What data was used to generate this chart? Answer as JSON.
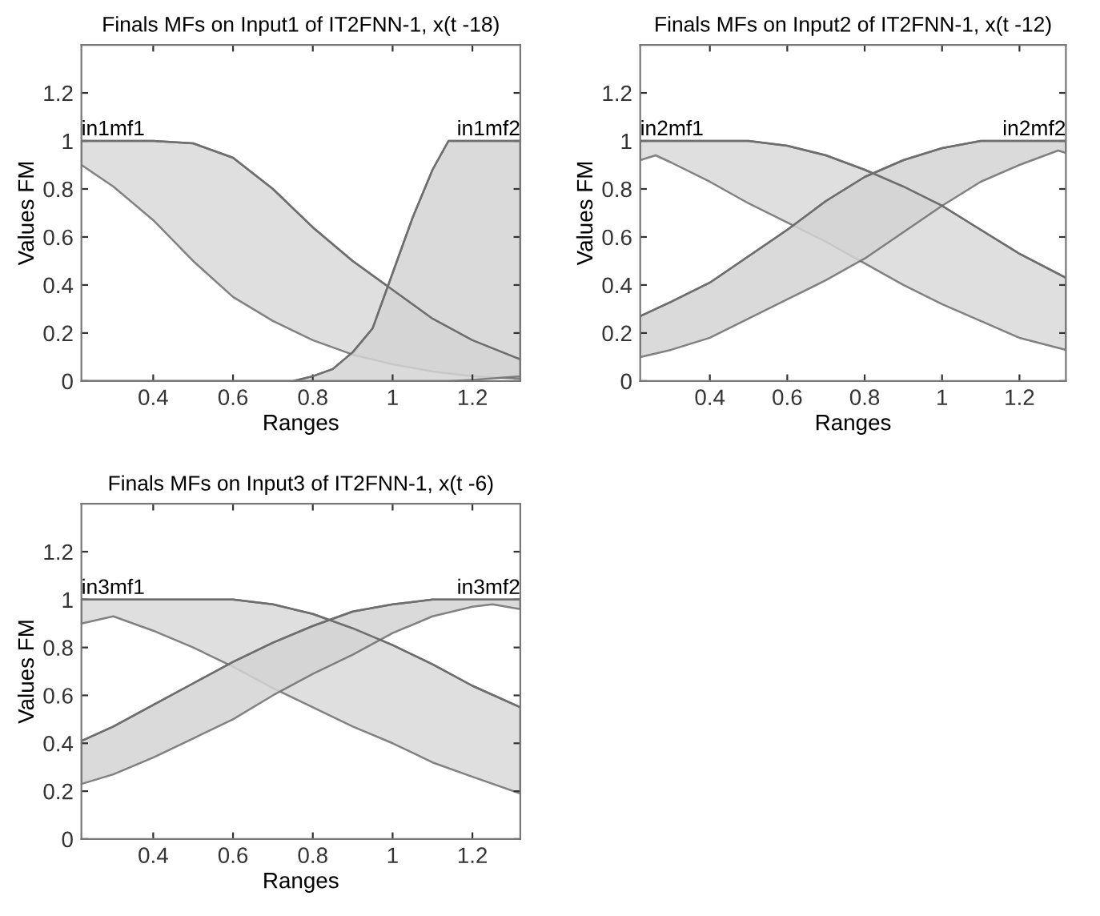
{
  "chart_data": [
    {
      "type": "line",
      "title": "Finals MFs on Input1 of IT2FNN-1, x(t -18)",
      "xlabel": "Ranges",
      "ylabel": "Values FM",
      "xlim": [
        0.22,
        1.32
      ],
      "ylim": [
        0,
        1.4
      ],
      "xticks": [
        0.4,
        0.6,
        0.8,
        1,
        1.2
      ],
      "yticks": [
        0,
        0.2,
        0.4,
        0.6,
        0.8,
        1,
        1.2
      ],
      "grid": false,
      "legend": false,
      "series": [
        {
          "name": "in1mf1",
          "color": "#6e6e6e",
          "x": [
            0.22,
            0.3,
            0.4,
            0.5,
            0.6,
            0.7,
            0.8,
            0.9,
            1.0,
            1.1,
            1.2,
            1.32
          ],
          "values": [
            1,
            1,
            1,
            0.99,
            0.93,
            0.8,
            0.64,
            0.5,
            0.38,
            0.26,
            0.17,
            0.09
          ],
          "upper": [
            1,
            1,
            1,
            0.99,
            0.93,
            0.8,
            0.64,
            0.5,
            0.38,
            0.26,
            0.17,
            0.09
          ],
          "lower": [
            0.9,
            0.81,
            0.67,
            0.5,
            0.35,
            0.25,
            0.17,
            0.11,
            0.07,
            0.04,
            0.02,
            0.01
          ]
        },
        {
          "name": "in1mf2",
          "color": "#6e6e6e",
          "x": [
            0.22,
            0.75,
            0.8,
            0.85,
            0.9,
            0.95,
            1.0,
            1.05,
            1.1,
            1.14,
            1.2,
            1.32
          ],
          "values": [
            0,
            0,
            0.02,
            0.05,
            0.12,
            0.22,
            0.45,
            0.68,
            0.88,
            1,
            1,
            1
          ],
          "upper": [
            0,
            0,
            0.02,
            0.05,
            0.12,
            0.22,
            0.45,
            0.68,
            0.88,
            1,
            1,
            1
          ],
          "lower": [
            0,
            0,
            0,
            0,
            0,
            0,
            0,
            0,
            0,
            0,
            0.005,
            0.02
          ]
        }
      ]
    },
    {
      "type": "line",
      "title": "Finals MFs on Input2 of IT2FNN-1, x(t -12)",
      "xlabel": "Ranges",
      "ylabel": "Values FM",
      "xlim": [
        0.22,
        1.32
      ],
      "ylim": [
        0,
        1.4
      ],
      "xticks": [
        0.4,
        0.6,
        0.8,
        1,
        1.2
      ],
      "yticks": [
        0,
        0.2,
        0.4,
        0.6,
        0.8,
        1,
        1.2
      ],
      "grid": false,
      "legend": false,
      "series": [
        {
          "name": "in2mf1",
          "color": "#6e6e6e",
          "x": [
            0.22,
            0.26,
            0.3,
            0.4,
            0.5,
            0.6,
            0.7,
            0.8,
            0.9,
            1.0,
            1.1,
            1.2,
            1.32
          ],
          "values": [
            1,
            1,
            1,
            1,
            1,
            0.98,
            0.94,
            0.88,
            0.81,
            0.73,
            0.63,
            0.53,
            0.43
          ],
          "upper": [
            1,
            1,
            1,
            1,
            1,
            0.98,
            0.94,
            0.88,
            0.81,
            0.73,
            0.63,
            0.53,
            0.43
          ],
          "lower": [
            0.92,
            0.94,
            0.91,
            0.83,
            0.74,
            0.66,
            0.58,
            0.49,
            0.4,
            0.32,
            0.25,
            0.18,
            0.13
          ]
        },
        {
          "name": "in2mf2",
          "color": "#6e6e6e",
          "x": [
            0.22,
            0.3,
            0.4,
            0.5,
            0.6,
            0.7,
            0.8,
            0.9,
            1.0,
            1.1,
            1.2,
            1.3,
            1.32
          ],
          "values": [
            0.27,
            0.33,
            0.41,
            0.52,
            0.63,
            0.75,
            0.85,
            0.92,
            0.97,
            1,
            1,
            1,
            1
          ],
          "upper": [
            0.27,
            0.33,
            0.41,
            0.52,
            0.63,
            0.75,
            0.85,
            0.92,
            0.97,
            1,
            1,
            1,
            1
          ],
          "lower": [
            0.1,
            0.13,
            0.18,
            0.26,
            0.34,
            0.42,
            0.51,
            0.62,
            0.73,
            0.83,
            0.9,
            0.96,
            0.95
          ]
        }
      ]
    },
    {
      "type": "line",
      "title": "Finals MFs on Input3 of IT2FNN-1, x(t -6)",
      "xlabel": "Ranges",
      "ylabel": "Values FM",
      "xlim": [
        0.22,
        1.32
      ],
      "ylim": [
        0,
        1.4
      ],
      "xticks": [
        0.4,
        0.6,
        0.8,
        1,
        1.2
      ],
      "yticks": [
        0,
        0.2,
        0.4,
        0.6,
        0.8,
        1,
        1.2
      ],
      "grid": false,
      "legend": false,
      "series": [
        {
          "name": "in3mf1",
          "color": "#6e6e6e",
          "x": [
            0.22,
            0.3,
            0.4,
            0.5,
            0.6,
            0.7,
            0.8,
            0.9,
            1.0,
            1.1,
            1.2,
            1.32
          ],
          "values": [
            1,
            1,
            1,
            1,
            1,
            0.98,
            0.94,
            0.88,
            0.81,
            0.73,
            0.64,
            0.55
          ],
          "upper": [
            1,
            1,
            1,
            1,
            1,
            0.98,
            0.94,
            0.88,
            0.81,
            0.73,
            0.64,
            0.55
          ],
          "lower": [
            0.9,
            0.93,
            0.87,
            0.8,
            0.72,
            0.63,
            0.55,
            0.47,
            0.4,
            0.32,
            0.26,
            0.19
          ]
        },
        {
          "name": "in3mf2",
          "color": "#6e6e6e",
          "x": [
            0.22,
            0.3,
            0.4,
            0.5,
            0.6,
            0.7,
            0.8,
            0.9,
            1.0,
            1.1,
            1.2,
            1.25,
            1.32
          ],
          "values": [
            0.41,
            0.47,
            0.56,
            0.65,
            0.74,
            0.82,
            0.89,
            0.95,
            0.98,
            1,
            1,
            1,
            1
          ],
          "upper": [
            0.41,
            0.47,
            0.56,
            0.65,
            0.74,
            0.82,
            0.89,
            0.95,
            0.98,
            1,
            1,
            1,
            1
          ],
          "lower": [
            0.23,
            0.27,
            0.34,
            0.42,
            0.5,
            0.6,
            0.69,
            0.77,
            0.86,
            0.93,
            0.97,
            0.98,
            0.96
          ]
        }
      ]
    }
  ]
}
